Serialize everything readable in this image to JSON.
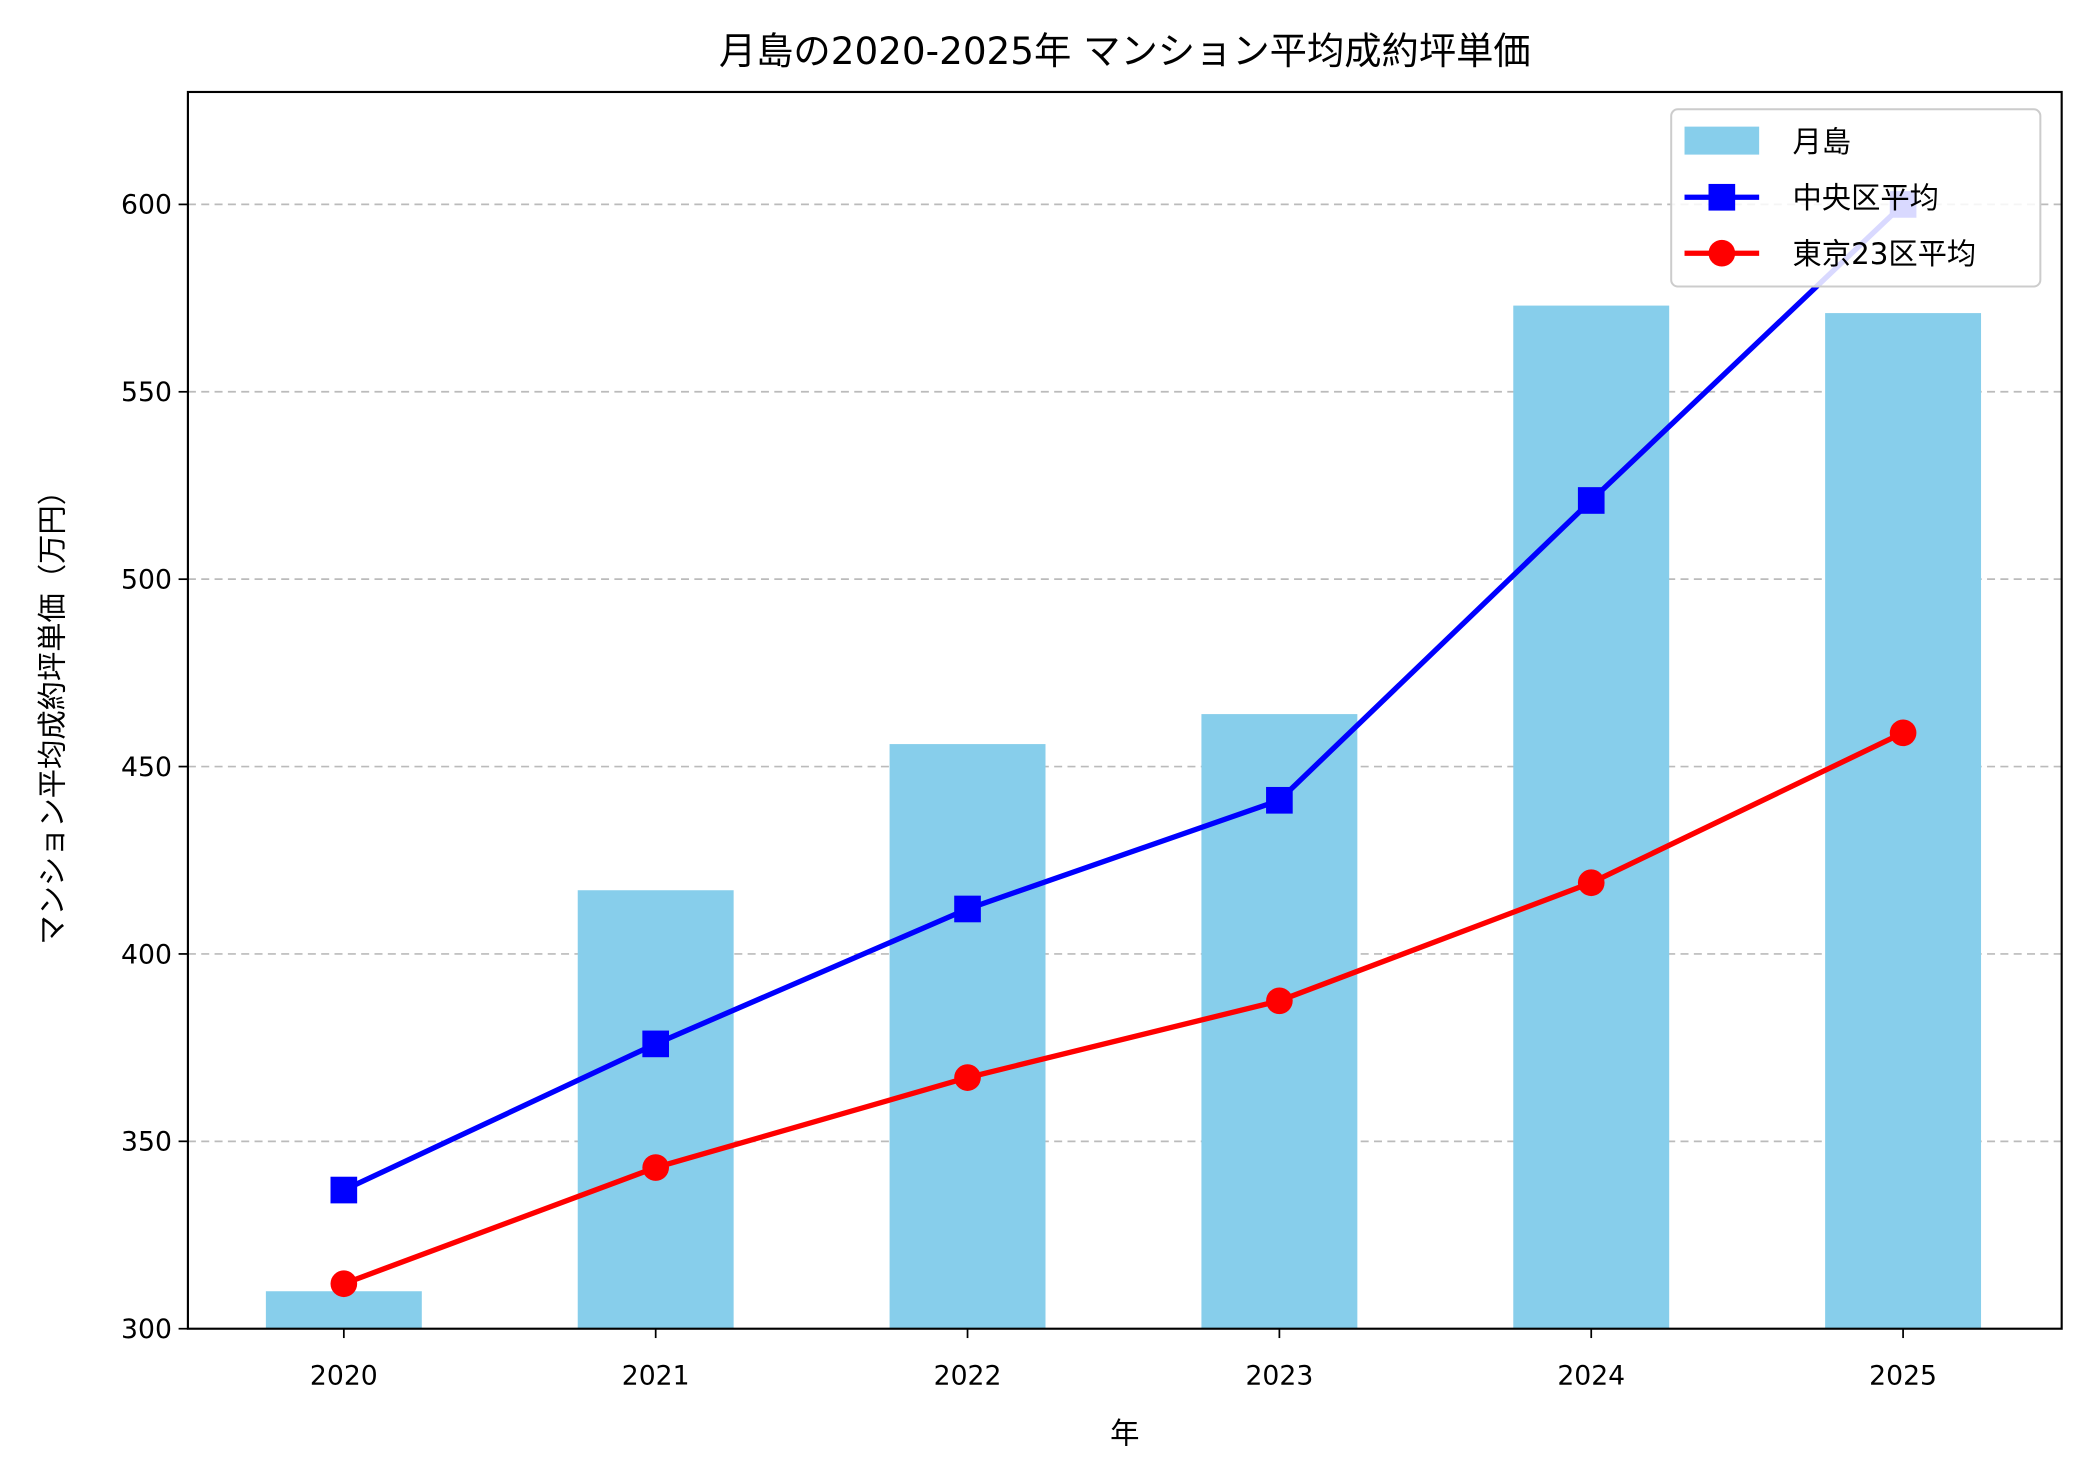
{
  "chart_data": {
    "type": "bar",
    "title": "月島の2020-2025年 マンション平均成約坪単価",
    "xlabel": "年",
    "ylabel": "マンション平均成約坪単価（万円）",
    "categories": [
      "2020",
      "2021",
      "2022",
      "2023",
      "2024",
      "2025"
    ],
    "ylim": [
      300,
      630
    ],
    "yticks": [
      300,
      350,
      400,
      450,
      500,
      550,
      600
    ],
    "grid": "y-dashed",
    "legend_position": "top-right",
    "series": [
      {
        "name": "月島",
        "type": "bar",
        "color": "#87ceeb",
        "values": [
          310,
          417,
          456,
          464,
          573,
          571
        ]
      },
      {
        "name": "中央区平均",
        "type": "line",
        "marker": "square",
        "color": "#0000ff",
        "values": [
          337,
          376,
          412,
          441,
          521,
          600
        ]
      },
      {
        "name": "東京23区平均",
        "type": "line",
        "marker": "circle",
        "color": "#ff0000",
        "values": [
          312,
          343,
          367,
          387.5,
          419,
          459
        ]
      }
    ]
  }
}
